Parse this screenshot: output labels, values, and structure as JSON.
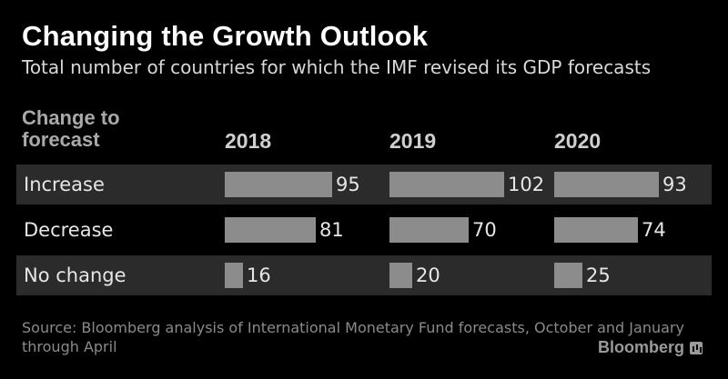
{
  "title": "Changing the Growth Outlook",
  "subtitle": "Total number of countries for which the IMF revised its GDP forecasts",
  "column_label": "Change to forecast",
  "source": "Source: Bloomberg analysis of International Monetary Fund forecasts, October and January through April",
  "brand": "Bloomberg",
  "colors": {
    "background": "#000000",
    "bar": "#8c8c8c",
    "shaded_row": "#2b2b2b"
  },
  "chart_data": {
    "type": "bar",
    "categories": [
      "2018",
      "2019",
      "2020"
    ],
    "rows": [
      "Increase",
      "Decrease",
      "No change"
    ],
    "series": [
      {
        "name": "Increase",
        "values": [
          95,
          102,
          93
        ]
      },
      {
        "name": "Decrease",
        "values": [
          81,
          70,
          74
        ]
      },
      {
        "name": "No change",
        "values": [
          16,
          20,
          25
        ]
      }
    ],
    "title": "Changing the Growth Outlook",
    "subtitle": "Total number of countries for which the IMF revised its GDP forecasts"
  }
}
